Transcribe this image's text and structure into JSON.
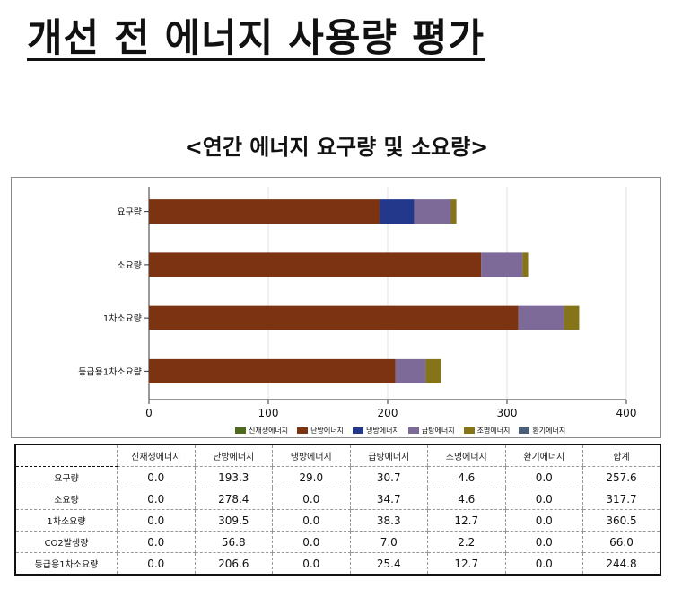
{
  "page_title": "개선 전 에너지 사용량 평가",
  "chart_data": {
    "type": "bar",
    "orientation": "horizontal",
    "stacked": true,
    "title": "<연간 에너지 요구량 및 소요량>",
    "categories": [
      "요구량",
      "소요량",
      "1차소요량",
      "등급용1차소요량"
    ],
    "series": [
      {
        "name": "신재생에너지",
        "color": "#4d6a1e",
        "values": [
          0.0,
          0.0,
          0.0,
          0.0
        ]
      },
      {
        "name": "난방에너지",
        "color": "#7c3311",
        "values": [
          193.3,
          278.4,
          309.5,
          206.6
        ]
      },
      {
        "name": "냉방에너지",
        "color": "#23388a",
        "values": [
          29.0,
          0.0,
          0.0,
          0.0
        ]
      },
      {
        "name": "급탕에너지",
        "color": "#7d6a98",
        "values": [
          30.7,
          34.7,
          38.3,
          25.4
        ]
      },
      {
        "name": "조명에너지",
        "color": "#867418",
        "values": [
          4.6,
          4.6,
          12.7,
          12.7
        ]
      },
      {
        "name": "환기에너지",
        "color": "#4a5e78",
        "values": [
          0.0,
          0.0,
          0.0,
          0.0
        ]
      }
    ],
    "xlim": [
      0,
      400
    ],
    "xticks": [
      "0",
      "100",
      "200",
      "300",
      "400"
    ],
    "grid": true,
    "legend_position": "bottom"
  },
  "table": {
    "headers": [
      "",
      "신재생에너지",
      "난방에너지",
      "냉방에너지",
      "급탕에너지",
      "조명에너지",
      "환기에너지",
      "합계"
    ],
    "rows": [
      [
        "요구량",
        "0.0",
        "193.3",
        "29.0",
        "30.7",
        "4.6",
        "0.0",
        "257.6"
      ],
      [
        "소요량",
        "0.0",
        "278.4",
        "0.0",
        "34.7",
        "4.6",
        "0.0",
        "317.7"
      ],
      [
        "1차소요량",
        "0.0",
        "309.5",
        "0.0",
        "38.3",
        "12.7",
        "0.0",
        "360.5"
      ],
      [
        "CO2발생량",
        "0.0",
        "56.8",
        "0.0",
        "7.0",
        "2.2",
        "0.0",
        "66.0"
      ],
      [
        "등급용1차소요량",
        "0.0",
        "206.6",
        "0.0",
        "25.4",
        "12.7",
        "0.0",
        "244.8"
      ]
    ]
  }
}
